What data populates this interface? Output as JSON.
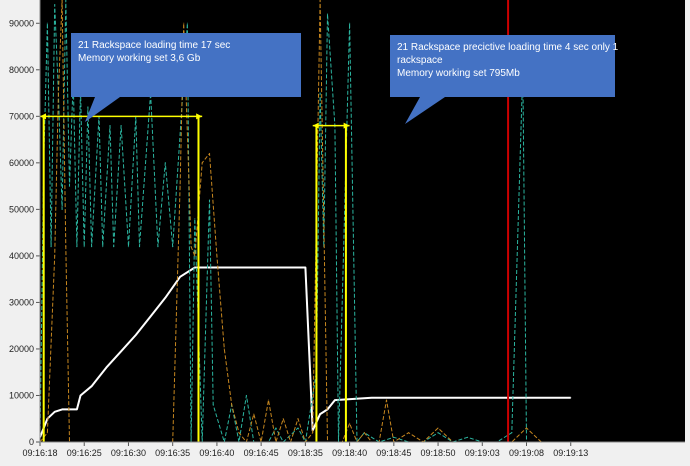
{
  "chart_data": {
    "type": "line",
    "title": "",
    "xlabel": "",
    "ylabel": "",
    "background": "#000000",
    "ylim": [
      0,
      95000
    ],
    "yticks": [
      0,
      10000,
      20000,
      30000,
      40000,
      50000,
      60000,
      70000,
      80000,
      90000
    ],
    "ytick_labels": [
      "0",
      "10000",
      "20000",
      "30000",
      "40000",
      "50000",
      "60000",
      "70000",
      "80000",
      "90000"
    ],
    "xlim": [
      0,
      175
    ],
    "xticks": [
      0,
      12,
      24,
      36,
      48,
      60,
      72,
      84,
      96,
      108,
      120,
      132,
      144
    ],
    "xtick_labels": [
      "09:16:18",
      "09:16:25",
      "09:16:30",
      "09:16:35",
      "09:16:40",
      "09:16:45",
      "09:18:35",
      "09:18:40",
      "09:18:45",
      "09:18:50",
      "09:19:03",
      "09:19:08",
      "09:19:13"
    ],
    "series": [
      {
        "color": "#ffffff",
        "style": "solid",
        "points": [
          [
            0,
            1000
          ],
          [
            2,
            5000
          ],
          [
            4,
            6500
          ],
          [
            6,
            7000
          ],
          [
            10,
            7000
          ],
          [
            11,
            10000
          ],
          [
            14,
            12000
          ],
          [
            18,
            16000
          ],
          [
            22,
            19500
          ],
          [
            26,
            23000
          ],
          [
            30,
            27000
          ],
          [
            34,
            31000
          ],
          [
            38,
            35500
          ],
          [
            42,
            37500
          ],
          [
            72,
            37500
          ],
          [
            74,
            2500
          ],
          [
            76,
            6000
          ],
          [
            78,
            7000
          ],
          [
            80,
            9000
          ],
          [
            90,
            9500
          ],
          [
            130,
            9500
          ],
          [
            144,
            9500
          ]
        ]
      },
      {
        "color": "#2bb5a0",
        "style": "dashed",
        "points": [
          [
            0,
            0
          ],
          [
            1,
            60000
          ],
          [
            2,
            90000
          ],
          [
            3,
            42000
          ],
          [
            4,
            94000
          ],
          [
            5,
            75000
          ],
          [
            6,
            50000
          ],
          [
            7,
            95000
          ],
          [
            8,
            55000
          ],
          [
            9,
            78000
          ],
          [
            10,
            42000
          ],
          [
            11,
            76000
          ],
          [
            12,
            42000
          ],
          [
            13,
            72000
          ],
          [
            14,
            42000
          ],
          [
            16,
            70000
          ],
          [
            17,
            42000
          ],
          [
            19,
            68000
          ],
          [
            20,
            42000
          ],
          [
            22,
            68000
          ],
          [
            24,
            42000
          ],
          [
            26,
            70000
          ],
          [
            27,
            42000
          ],
          [
            30,
            75000
          ],
          [
            32,
            42000
          ],
          [
            34,
            60000
          ],
          [
            36,
            42000
          ],
          [
            40,
            90000
          ],
          [
            41,
            0
          ],
          [
            42,
            48000
          ],
          [
            44,
            0
          ],
          [
            46,
            52000
          ],
          [
            47,
            8000
          ],
          [
            50,
            0
          ],
          [
            52,
            8000
          ],
          [
            54,
            0
          ],
          [
            56,
            10000
          ],
          [
            58,
            0
          ],
          [
            62,
            0
          ],
          [
            64,
            3000
          ],
          [
            66,
            0
          ],
          [
            70,
            3000
          ],
          [
            72,
            0
          ],
          [
            75,
            15000
          ],
          [
            76,
            75000
          ],
          [
            77,
            42000
          ],
          [
            78,
            92000
          ],
          [
            80,
            68000
          ],
          [
            81,
            0
          ],
          [
            84,
            90000
          ],
          [
            86,
            0
          ],
          [
            88,
            2000
          ],
          [
            92,
            0
          ],
          [
            96,
            1000
          ],
          [
            100,
            0
          ],
          [
            104,
            0
          ],
          [
            108,
            2000
          ],
          [
            112,
            0
          ],
          [
            116,
            1000
          ],
          [
            120,
            0
          ],
          [
            124,
            0
          ],
          [
            128,
            2000
          ],
          [
            131,
            80000
          ],
          [
            132,
            0
          ],
          [
            136,
            0
          ]
        ]
      },
      {
        "color": "#c7871f",
        "style": "dashed",
        "points": [
          [
            0,
            0
          ],
          [
            2,
            2000
          ],
          [
            4,
            40000
          ],
          [
            5,
            75000
          ],
          [
            6,
            95000
          ],
          [
            7,
            42000
          ],
          [
            8,
            0
          ],
          [
            12,
            0
          ],
          [
            16,
            0
          ],
          [
            20,
            0
          ],
          [
            24,
            0
          ],
          [
            28,
            0
          ],
          [
            32,
            0
          ],
          [
            36,
            0
          ],
          [
            38,
            55000
          ],
          [
            39,
            90000
          ],
          [
            41,
            42000
          ],
          [
            42,
            40000
          ],
          [
            44,
            60000
          ],
          [
            46,
            62000
          ],
          [
            48,
            40000
          ],
          [
            50,
            20000
          ],
          [
            52,
            8000
          ],
          [
            54,
            2000
          ],
          [
            56,
            0
          ],
          [
            58,
            6000
          ],
          [
            60,
            0
          ],
          [
            62,
            9000
          ],
          [
            64,
            0
          ],
          [
            66,
            5000
          ],
          [
            68,
            0
          ],
          [
            70,
            5000
          ],
          [
            72,
            0
          ],
          [
            74,
            2000
          ],
          [
            76,
            95000
          ],
          [
            78,
            0
          ],
          [
            82,
            0
          ],
          [
            84,
            4000
          ],
          [
            86,
            0
          ],
          [
            88,
            2000
          ],
          [
            90,
            0
          ],
          [
            92,
            0
          ],
          [
            94,
            9000
          ],
          [
            96,
            0
          ],
          [
            100,
            2000
          ],
          [
            104,
            0
          ],
          [
            108,
            3000
          ],
          [
            112,
            0
          ],
          [
            120,
            0
          ],
          [
            128,
            0
          ],
          [
            132,
            3000
          ],
          [
            136,
            0
          ]
        ]
      },
      {
        "color": "#1e90ff",
        "style": "dashed",
        "points": [
          [
            0,
            0
          ],
          [
            20,
            0
          ],
          [
            40,
            0
          ],
          [
            60,
            0
          ],
          [
            80,
            0
          ],
          [
            100,
            0
          ],
          [
            120,
            0
          ],
          [
            144,
            0
          ]
        ]
      }
    ],
    "markers": [
      {
        "type": "vline",
        "x": 1,
        "y_top": 70000,
        "color": "#ffff00"
      },
      {
        "type": "vline",
        "x": 43,
        "y_top": 70000,
        "color": "#ffff00"
      },
      {
        "type": "vline",
        "x": 75,
        "y_top": 68000,
        "color": "#ffff00"
      },
      {
        "type": "vline",
        "x": 83,
        "y_top": 68000,
        "color": "#ffff00"
      },
      {
        "type": "vline",
        "x": 127,
        "y_top": 95000,
        "color": "#cc0000"
      },
      {
        "type": "arrow",
        "x1": 0,
        "x2": 44,
        "y": 70000,
        "color": "#ffff00"
      },
      {
        "type": "arrow",
        "x1": 74,
        "x2": 84,
        "y": 68000,
        "color": "#ffff00"
      }
    ],
    "annotations": [
      {
        "lines": [
          "21  Rackspace  loading time 17 sec",
          "Memory working set 3,6 Gb"
        ],
        "color": "#4472c4"
      },
      {
        "lines": [
          "21  Rackspace  precictive loading time  4 sec   only 1",
          "rackspace",
          "Memory working set 795Mb"
        ],
        "color": "#4472c4"
      }
    ]
  }
}
